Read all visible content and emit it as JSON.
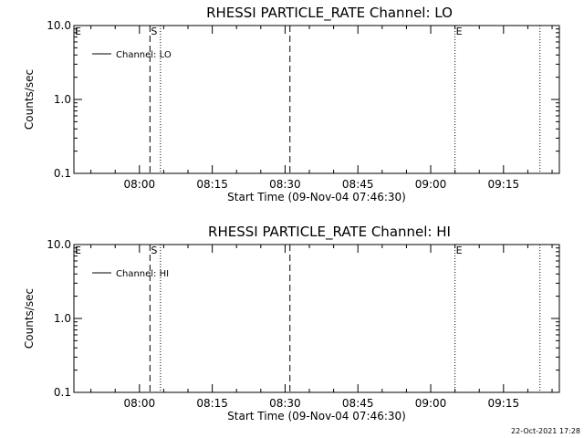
{
  "footer": {
    "timestamp": "22-Oct-2021 17:28"
  },
  "chart_data": [
    {
      "type": "line",
      "title": "RHESSI PARTICLE_RATE Channel: LO",
      "xlabel": "Start Time (09-Nov-04 07:46:30)",
      "ylabel": "Counts/sec",
      "yscale": "log",
      "ylim": [
        0.1,
        10.0
      ],
      "xlim": [
        "07:46:30",
        "09:26:30"
      ],
      "xticks": [
        "08:00",
        "08:15",
        "08:30",
        "08:45",
        "09:00",
        "09:15"
      ],
      "yticks": [
        "0.1",
        "1.0",
        "10.0"
      ],
      "series": [
        {
          "name": "Channel: LO",
          "values": []
        }
      ],
      "legend_position": "top-left",
      "markers": [
        {
          "label": "E",
          "time": "07:46:30",
          "style": "none"
        },
        {
          "label": "S",
          "time": "08:02:10",
          "style": "dashed"
        },
        {
          "label": "",
          "time": "08:04:20",
          "style": "dotted"
        },
        {
          "label": "",
          "time": "08:31:00",
          "style": "dashed"
        },
        {
          "label": "E",
          "time": "09:05:00",
          "style": "dotted"
        },
        {
          "label": "",
          "time": "09:22:30",
          "style": "dotted"
        }
      ]
    },
    {
      "type": "line",
      "title": "RHESSI PARTICLE_RATE Channel: HI",
      "xlabel": "Start Time (09-Nov-04 07:46:30)",
      "ylabel": "Counts/sec",
      "yscale": "log",
      "ylim": [
        0.1,
        10.0
      ],
      "xlim": [
        "07:46:30",
        "09:26:30"
      ],
      "xticks": [
        "08:00",
        "08:15",
        "08:30",
        "08:45",
        "09:00",
        "09:15"
      ],
      "yticks": [
        "0.1",
        "1.0",
        "10.0"
      ],
      "series": [
        {
          "name": "Channel: HI",
          "values": []
        }
      ],
      "legend_position": "top-left",
      "markers": [
        {
          "label": "E",
          "time": "07:46:30",
          "style": "none"
        },
        {
          "label": "S",
          "time": "08:02:10",
          "style": "dashed"
        },
        {
          "label": "",
          "time": "08:04:20",
          "style": "dotted"
        },
        {
          "label": "",
          "time": "08:31:00",
          "style": "dashed"
        },
        {
          "label": "E",
          "time": "09:05:00",
          "style": "dotted"
        },
        {
          "label": "",
          "time": "09:22:30",
          "style": "dotted"
        }
      ]
    }
  ]
}
